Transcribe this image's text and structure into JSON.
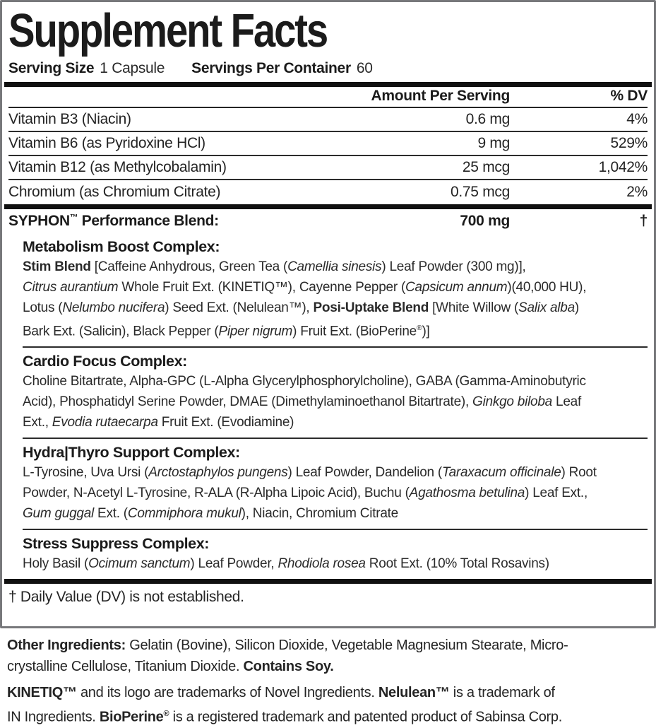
{
  "title": "Supplement Facts",
  "serving": {
    "size_label": "Serving Size",
    "size_value": "1 Capsule",
    "per_container_label": "Servings Per Container",
    "per_container_value": "60"
  },
  "header": {
    "amount": "Amount Per Serving",
    "dv": "% DV"
  },
  "nutrients": [
    {
      "name": "Vitamin B3 (Niacin)",
      "amount": "0.6 mg",
      "dv": "4%"
    },
    {
      "name": "Vitamin B6 (as Pyridoxine HCl)",
      "amount": "9 mg",
      "dv": "529%"
    },
    {
      "name": "Vitamin B12 (as Methylcobalamin)",
      "amount": "25 mcg",
      "dv": "1,042%"
    },
    {
      "name": "Chromium (as Chromium Citrate)",
      "amount": "0.75 mcg",
      "dv": "2%"
    }
  ],
  "blend": {
    "name_segments": [
      {
        "t": "SYPHON",
        "b": true
      },
      {
        "t": "™",
        "b": true,
        "sup": true
      },
      {
        "t": " Performance Blend:",
        "b": true
      }
    ],
    "amount": "700 mg",
    "dv": "†"
  },
  "complexes": [
    {
      "header": "Metabolism Boost Complex:",
      "lines": [
        [
          {
            "t": "Stim Blend",
            "b": true
          },
          {
            "t": " [Caffeine Anhydrous, Green Tea ("
          },
          {
            "t": "Camellia sinesis",
            "i": true
          },
          {
            "t": ") Leaf Powder (300 mg)],"
          }
        ],
        [
          {
            "t": "Citrus aurantium",
            "i": true
          },
          {
            "t": " Whole Fruit Ext. (KINETIQ™), Cayenne Pepper ("
          },
          {
            "t": "Capsicum annum",
            "i": true
          },
          {
            "t": ")(40,000 HU),"
          }
        ],
        [
          {
            "t": "Lotus ("
          },
          {
            "t": "Nelumbo nucifera",
            "i": true
          },
          {
            "t": ") Seed Ext. (Nelulean™), "
          },
          {
            "t": "Posi-Uptake Blend",
            "b": true
          },
          {
            "t": " [White Willow ("
          },
          {
            "t": "Salix alba",
            "i": true
          },
          {
            "t": ")"
          }
        ],
        [
          {
            "t": "Bark Ext. (Salicin), Black Pepper ("
          },
          {
            "t": "Piper nigrum",
            "i": true
          },
          {
            "t": ") Fruit Ext. (BioPerine"
          },
          {
            "t": "®",
            "sup": true
          },
          {
            "t": ")]"
          }
        ]
      ]
    },
    {
      "header": "Cardio Focus Complex:",
      "lines": [
        [
          {
            "t": "Choline Bitartrate, Alpha-GPC (L-Alpha Glycerylphosphorylcholine), GABA (Gamma-Aminobutyric"
          }
        ],
        [
          {
            "t": "Acid), Phosphatidyl Serine Powder, DMAE (Dimethylaminoethanol Bitartrate), "
          },
          {
            "t": "Ginkgo biloba",
            "i": true
          },
          {
            "t": " Leaf"
          }
        ],
        [
          {
            "t": "Ext., "
          },
          {
            "t": "Evodia rutaecarpa",
            "i": true
          },
          {
            "t": " Fruit Ext. (Evodiamine)"
          }
        ]
      ]
    },
    {
      "header": "Hydra|Thyro Support Complex:",
      "lines": [
        [
          {
            "t": "L-Tyrosine, Uva Ursi ("
          },
          {
            "t": "Arctostaphylos pungens",
            "i": true
          },
          {
            "t": ") Leaf Powder, Dandelion ("
          },
          {
            "t": "Taraxacum officinale",
            "i": true
          },
          {
            "t": ") Root"
          }
        ],
        [
          {
            "t": "Powder, N-Acetyl L-Tyrosine, R-ALA (R-Alpha Lipoic Acid), Buchu ("
          },
          {
            "t": "Agathosma betulina",
            "i": true
          },
          {
            "t": ") Leaf Ext.,"
          }
        ],
        [
          {
            "t": "Gum guggal",
            "i": true
          },
          {
            "t": " Ext. ("
          },
          {
            "t": "Commiphora mukul",
            "i": true
          },
          {
            "t": "), Niacin, Chromium Citrate"
          }
        ]
      ]
    },
    {
      "header": "Stress Suppress Complex:",
      "lines": [
        [
          {
            "t": "Holy Basil ("
          },
          {
            "t": "Ocimum sanctum",
            "i": true
          },
          {
            "t": ") Leaf Powder, "
          },
          {
            "t": "Rhodiola rosea",
            "i": true
          },
          {
            "t": " Root Ext. (10% Total Rosavins)"
          }
        ]
      ]
    }
  ],
  "footnote": "† Daily Value (DV) is not established.",
  "other_ingredients_lines": [
    [
      {
        "t": "Other Ingredients:",
        "b": true
      },
      {
        "t": " Gelatin (Bovine), Silicon Dioxide, Vegetable Magnesium Stearate, Micro-"
      }
    ],
    [
      {
        "t": "crystalline Cellulose, Titanium Dioxide. "
      },
      {
        "t": "Contains Soy.",
        "b": true
      }
    ]
  ],
  "trademark_lines": [
    [
      {
        "t": "KINETIQ™",
        "b": true
      },
      {
        "t": " and its logo are trademarks of Novel Ingredients. "
      },
      {
        "t": "Nelulean™",
        "b": true
      },
      {
        "t": " is a trademark of"
      }
    ],
    [
      {
        "t": "IN Ingredients. "
      },
      {
        "t": "BioPerine",
        "b": true
      },
      {
        "t": "®",
        "b": true,
        "sup": true
      },
      {
        "t": " is a registered trademark and patented product of Sabinsa Corp."
      }
    ]
  ],
  "colors": {
    "text": "#1b1b1b",
    "rule": "#101010",
    "panel_border": "#77787b"
  }
}
